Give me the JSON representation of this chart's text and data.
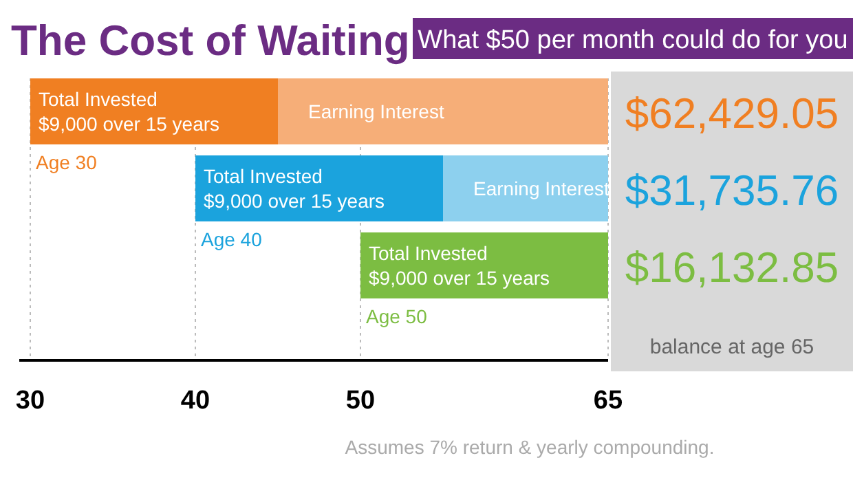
{
  "chart_data": {
    "type": "bar",
    "orientation": "horizontal",
    "title": "The Cost of Waiting",
    "subtitle": "What $50 per month could do for you",
    "categories": [
      "Age 30",
      "Age 40",
      "Age 50"
    ],
    "series": [
      {
        "colors": [
          "#f07f22",
          "#1ba3dd",
          "#7cbd42"
        ],
        "base": [
          30,
          40,
          50
        ],
        "values": [
          15,
          15,
          15
        ],
        "value_labels": [
          "Total Invested\n$9,000 over 15 years",
          "Total Invested\n$9,000 over 15 years",
          "Total Invested\n$9,000 over 15 years"
        ]
      },
      {
        "colors": [
          "#f6ae78",
          "#8dd0ee",
          null
        ],
        "base": [
          45,
          55,
          null
        ],
        "values": [
          20,
          10,
          null
        ],
        "value_labels": [
          "Earning Interest",
          "Earning Interest",
          null
        ]
      }
    ],
    "xlim": [
      30,
      65
    ],
    "xticks": [
      30,
      40,
      50,
      65
    ],
    "grid": "x",
    "annotations": [
      "$62,429.05",
      "$31,735.76",
      "$16,132.85",
      "balance at age 65",
      "Assumes 7% return & yearly compounding."
    ]
  }
}
